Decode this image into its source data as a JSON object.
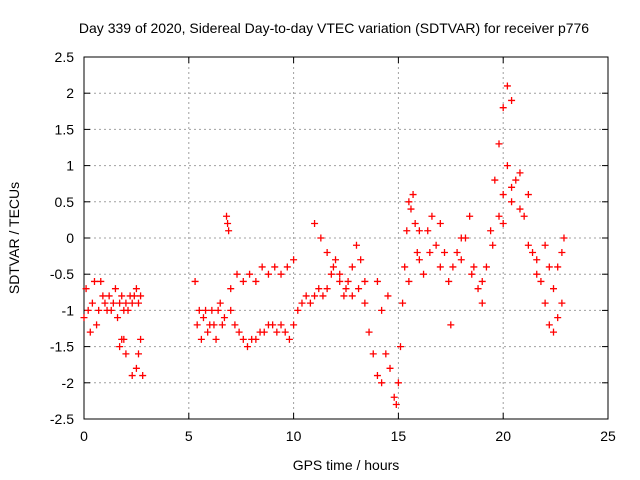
{
  "chart_data": {
    "type": "scatter",
    "title": "Day 339 of 2020, Sidereal Day-to-day VTEC variation (SDTVAR) for receiver p776",
    "xlabel": "GPS time / hours",
    "ylabel": "SDTVAR / TECUs",
    "xlim": [
      0,
      25
    ],
    "ylim": [
      -2.5,
      2.5
    ],
    "xticks": [
      "0",
      "5",
      "10",
      "15",
      "20",
      "25"
    ],
    "yticks": [
      "2.5",
      "2",
      "1.5",
      "1",
      "0.5",
      "0",
      "-0.5",
      "-1",
      "-1.5",
      "-2",
      "-2.5"
    ],
    "grid": true,
    "marker": "+",
    "color": "#ff0000",
    "series": [
      {
        "name": "SDTVAR",
        "points": [
          [
            0.0,
            -1.1
          ],
          [
            0.1,
            -0.7
          ],
          [
            0.2,
            -1.0
          ],
          [
            0.3,
            -1.3
          ],
          [
            0.4,
            -0.9
          ],
          [
            0.5,
            -0.6
          ],
          [
            0.6,
            -1.2
          ],
          [
            0.7,
            -1.0
          ],
          [
            0.8,
            -0.6
          ],
          [
            0.9,
            -0.8
          ],
          [
            1.0,
            -0.9
          ],
          [
            1.1,
            -1.0
          ],
          [
            1.2,
            -0.8
          ],
          [
            1.3,
            -1.0
          ],
          [
            1.4,
            -0.9
          ],
          [
            1.5,
            -0.7
          ],
          [
            1.6,
            -1.1
          ],
          [
            1.7,
            -0.9
          ],
          [
            1.8,
            -0.8
          ],
          [
            1.9,
            -1.0
          ],
          [
            2.0,
            -0.9
          ],
          [
            2.1,
            -1.0
          ],
          [
            2.2,
            -0.8
          ],
          [
            2.3,
            -0.9
          ],
          [
            2.4,
            -0.8
          ],
          [
            2.5,
            -0.7
          ],
          [
            2.6,
            -0.9
          ],
          [
            2.7,
            -0.8
          ],
          [
            1.7,
            -1.5
          ],
          [
            1.8,
            -1.4
          ],
          [
            1.9,
            -1.4
          ],
          [
            2.0,
            -1.6
          ],
          [
            2.3,
            -1.9
          ],
          [
            2.5,
            -1.8
          ],
          [
            2.6,
            -1.6
          ],
          [
            2.7,
            -1.4
          ],
          [
            2.8,
            -1.9
          ],
          [
            5.3,
            -0.6
          ],
          [
            5.4,
            -1.2
          ],
          [
            5.5,
            -1.0
          ],
          [
            5.6,
            -1.4
          ],
          [
            5.7,
            -1.1
          ],
          [
            5.8,
            -1.0
          ],
          [
            5.9,
            -1.3
          ],
          [
            6.0,
            -1.2
          ],
          [
            6.1,
            -1.0
          ],
          [
            6.2,
            -1.2
          ],
          [
            6.3,
            -1.4
          ],
          [
            6.4,
            -1.0
          ],
          [
            6.5,
            -0.9
          ],
          [
            6.6,
            -1.2
          ],
          [
            6.7,
            -1.1
          ],
          [
            6.8,
            0.3
          ],
          [
            6.85,
            0.2
          ],
          [
            6.9,
            0.1
          ],
          [
            7.0,
            -1.0
          ],
          [
            7.2,
            -1.2
          ],
          [
            7.4,
            -1.3
          ],
          [
            7.6,
            -1.4
          ],
          [
            7.8,
            -1.5
          ],
          [
            8.0,
            -1.4
          ],
          [
            8.2,
            -1.4
          ],
          [
            8.4,
            -1.3
          ],
          [
            8.6,
            -1.3
          ],
          [
            8.8,
            -1.2
          ],
          [
            9.0,
            -1.2
          ],
          [
            9.2,
            -1.3
          ],
          [
            9.4,
            -1.2
          ],
          [
            9.6,
            -1.3
          ],
          [
            9.8,
            -1.4
          ],
          [
            10.0,
            -1.2
          ],
          [
            10.2,
            -1.0
          ],
          [
            10.4,
            -0.9
          ],
          [
            10.6,
            -0.8
          ],
          [
            10.8,
            -0.9
          ],
          [
            11.0,
            -0.8
          ],
          [
            11.2,
            -0.7
          ],
          [
            11.4,
            -0.8
          ],
          [
            11.6,
            -0.7
          ],
          [
            11.8,
            -0.5
          ],
          [
            12.0,
            -0.3
          ],
          [
            12.2,
            -0.5
          ],
          [
            12.4,
            -0.8
          ],
          [
            12.6,
            -0.6
          ],
          [
            12.8,
            -0.4
          ],
          [
            13.0,
            -0.1
          ],
          [
            13.2,
            -0.3
          ],
          [
            13.4,
            -0.6
          ],
          [
            7.0,
            -0.7
          ],
          [
            7.3,
            -0.5
          ],
          [
            7.6,
            -0.6
          ],
          [
            7.9,
            -0.5
          ],
          [
            8.2,
            -0.6
          ],
          [
            8.5,
            -0.4
          ],
          [
            8.8,
            -0.5
          ],
          [
            9.1,
            -0.4
          ],
          [
            9.4,
            -0.5
          ],
          [
            9.7,
            -0.4
          ],
          [
            10.0,
            -0.3
          ],
          [
            11.0,
            0.2
          ],
          [
            11.3,
            0.0
          ],
          [
            11.6,
            -0.2
          ],
          [
            11.9,
            -0.4
          ],
          [
            12.2,
            -0.6
          ],
          [
            12.5,
            -0.7
          ],
          [
            12.8,
            -0.8
          ],
          [
            13.1,
            -0.7
          ],
          [
            13.4,
            -0.9
          ],
          [
            13.6,
            -1.3
          ],
          [
            13.8,
            -1.6
          ],
          [
            14.0,
            -1.9
          ],
          [
            14.2,
            -2.0
          ],
          [
            14.4,
            -1.6
          ],
          [
            14.6,
            -1.8
          ],
          [
            14.8,
            -2.2
          ],
          [
            14.9,
            -2.3
          ],
          [
            15.0,
            -2.0
          ],
          [
            15.1,
            -1.5
          ],
          [
            15.2,
            -0.9
          ],
          [
            15.3,
            -0.4
          ],
          [
            15.4,
            0.1
          ],
          [
            15.5,
            0.5
          ],
          [
            15.6,
            0.4
          ],
          [
            15.7,
            0.6
          ],
          [
            15.8,
            0.2
          ],
          [
            15.9,
            -0.2
          ],
          [
            16.0,
            -0.3
          ],
          [
            16.2,
            -0.5
          ],
          [
            16.4,
            0.1
          ],
          [
            16.6,
            0.3
          ],
          [
            16.8,
            -0.1
          ],
          [
            17.0,
            -0.4
          ],
          [
            17.2,
            -0.2
          ],
          [
            17.4,
            -0.6
          ],
          [
            17.6,
            -0.4
          ],
          [
            17.8,
            -0.2
          ],
          [
            18.0,
            -0.3
          ],
          [
            18.2,
            0.0
          ],
          [
            18.4,
            0.3
          ],
          [
            18.6,
            -0.4
          ],
          [
            18.8,
            -0.7
          ],
          [
            19.0,
            -0.9
          ],
          [
            19.2,
            -0.4
          ],
          [
            19.4,
            0.1
          ],
          [
            19.6,
            0.8
          ],
          [
            19.8,
            1.3
          ],
          [
            20.0,
            1.8
          ],
          [
            20.2,
            2.1
          ],
          [
            20.4,
            1.9
          ],
          [
            14.0,
            -0.6
          ],
          [
            14.2,
            -1.0
          ],
          [
            14.5,
            -0.8
          ],
          [
            15.5,
            -0.6
          ],
          [
            16.0,
            0.1
          ],
          [
            16.5,
            -0.2
          ],
          [
            17.0,
            0.2
          ],
          [
            17.5,
            -1.2
          ],
          [
            18.0,
            0.0
          ],
          [
            18.5,
            -0.5
          ],
          [
            19.0,
            -0.6
          ],
          [
            19.5,
            -0.1
          ],
          [
            19.8,
            0.3
          ],
          [
            20.0,
            0.6
          ],
          [
            20.2,
            1.0
          ],
          [
            20.4,
            0.5
          ],
          [
            20.6,
            0.8
          ],
          [
            20.8,
            0.4
          ],
          [
            21.0,
            0.3
          ],
          [
            21.2,
            -0.1
          ],
          [
            21.4,
            -0.2
          ],
          [
            21.6,
            -0.5
          ],
          [
            21.8,
            -0.6
          ],
          [
            22.0,
            -0.9
          ],
          [
            22.2,
            -1.2
          ],
          [
            22.4,
            -1.3
          ],
          [
            22.6,
            -1.1
          ],
          [
            22.8,
            -0.9
          ],
          [
            20.0,
            0.2
          ],
          [
            20.4,
            0.7
          ],
          [
            20.8,
            0.9
          ],
          [
            21.2,
            0.6
          ],
          [
            21.6,
            -0.3
          ],
          [
            22.0,
            -0.1
          ],
          [
            22.2,
            -0.4
          ],
          [
            22.4,
            -0.7
          ],
          [
            22.6,
            -0.4
          ],
          [
            22.8,
            -0.2
          ],
          [
            22.9,
            0.0
          ]
        ]
      }
    ]
  }
}
